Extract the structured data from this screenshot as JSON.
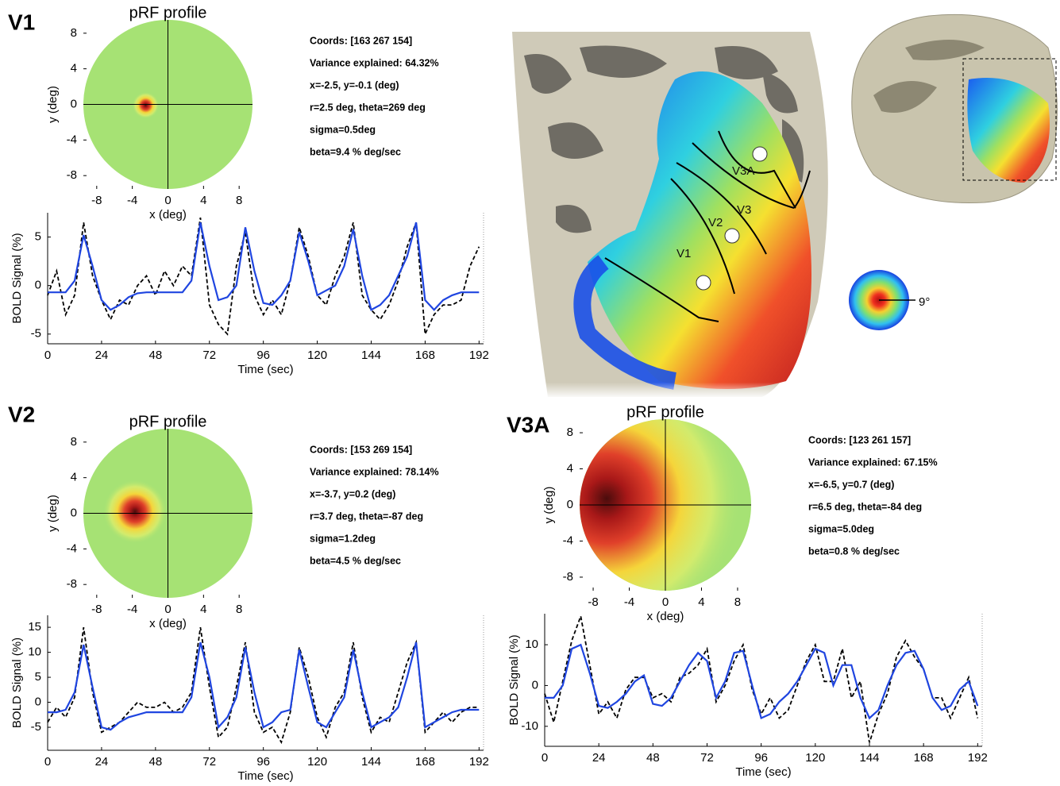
{
  "figure": {
    "panel_labels": [
      "V1",
      "V2",
      "V3A"
    ],
    "brain_labels": [
      "V3A",
      "V3",
      "V2",
      "V1"
    ],
    "scale_label": "9°"
  },
  "chart_data": [
    {
      "type": "prf",
      "title": "pRF profile",
      "xlabel": "x (deg)",
      "ylabel": "y (deg)",
      "xlim": [
        -9.5,
        9.5
      ],
      "ylim": [
        -9.5,
        9.5
      ],
      "xticks": [
        -8,
        -4,
        0,
        4,
        8
      ],
      "yticks": [
        -8,
        -4,
        0,
        4,
        8
      ],
      "color": "#a6e274",
      "center_x": -2.5,
      "center_y": -0.1,
      "sigma": 0.5,
      "info": [
        "Coords: [163  267  154]",
        "Variance explained: 64.32%",
        "x=-2.5, y=-0.1 (deg)",
        "r=2.5 deg, theta=269 deg",
        "sigma=0.5deg",
        "beta=9.4 % deg/sec"
      ]
    },
    {
      "type": "line",
      "xlabel": "Time (sec)",
      "ylabel": "BOLD Signal (%)",
      "xlim": [
        0,
        194
      ],
      "ylim": [
        -6,
        7.5
      ],
      "xticks": [
        0,
        24,
        48,
        72,
        96,
        120,
        144,
        168,
        192
      ],
      "yticks": [
        -5,
        0,
        5
      ],
      "x": [
        0,
        4,
        8,
        12,
        16,
        20,
        24,
        28,
        32,
        36,
        40,
        44,
        48,
        52,
        56,
        60,
        64,
        68,
        72,
        76,
        80,
        84,
        88,
        92,
        96,
        100,
        104,
        108,
        112,
        116,
        120,
        124,
        128,
        132,
        136,
        140,
        144,
        148,
        152,
        156,
        160,
        164,
        168,
        172,
        176,
        180,
        184,
        188,
        192
      ],
      "series": [
        {
          "color": "#000000",
          "dashed": true,
          "values": [
            -1,
            1.5,
            -3,
            -1,
            6.5,
            1,
            -1.5,
            -3.5,
            -1.5,
            -2,
            0,
            1,
            -1,
            1.5,
            0,
            2,
            1,
            7,
            -2,
            -4,
            -5,
            2,
            5.5,
            -1,
            -3,
            -1.5,
            -3,
            0.5,
            6,
            3,
            -1,
            -2,
            1,
            3,
            6.5,
            -1,
            -2.5,
            -3.5,
            -2,
            0.5,
            4,
            6.5,
            -5,
            -3,
            -2,
            -2,
            -1.5,
            2,
            4
          ]
        },
        {
          "color": "#1f45e0",
          "dashed": false,
          "values": [
            -0.7,
            -0.7,
            -0.7,
            0.5,
            5.2,
            2,
            -1.5,
            -2.5,
            -2,
            -1.2,
            -0.8,
            -0.7,
            -0.7,
            -0.7,
            -0.7,
            -0.7,
            0.5,
            6.5,
            2,
            -1.5,
            -1.2,
            0,
            6,
            1.5,
            -1.8,
            -2,
            -1,
            0.5,
            5.5,
            2.5,
            -1,
            -0.5,
            0,
            2,
            5.8,
            1,
            -2.5,
            -2,
            -1,
            1,
            3,
            6.5,
            -1.5,
            -2.5,
            -1.5,
            -1,
            -0.7,
            -0.7,
            -0.7
          ]
        }
      ]
    },
    {
      "type": "prf",
      "title": "pRF profile",
      "xlabel": "x (deg)",
      "ylabel": "y (deg)",
      "xlim": [
        -9.5,
        9.5
      ],
      "ylim": [
        -9.5,
        9.5
      ],
      "xticks": [
        -8,
        -4,
        0,
        4,
        8
      ],
      "yticks": [
        -8,
        -4,
        0,
        4,
        8
      ],
      "color": "#a6e274",
      "center_x": -3.7,
      "center_y": 0.2,
      "sigma": 1.2,
      "info": [
        "Coords: [153  269  154]",
        "Variance explained: 78.14%",
        "x=-3.7, y=0.2 (deg)",
        "r=3.7 deg, theta=-87 deg",
        "sigma=1.2deg",
        "beta=4.5 % deg/sec"
      ]
    },
    {
      "type": "line",
      "xlabel": "Time (sec)",
      "ylabel": "BOLD Signal (%)",
      "xlim": [
        0,
        194
      ],
      "ylim": [
        -9.6,
        17.4
      ],
      "xticks": [
        0,
        24,
        48,
        72,
        96,
        120,
        144,
        168,
        192
      ],
      "yticks": [
        -5,
        0,
        5,
        10,
        15
      ],
      "x": [
        0,
        4,
        8,
        12,
        16,
        20,
        24,
        28,
        32,
        36,
        40,
        44,
        48,
        52,
        56,
        60,
        64,
        68,
        72,
        76,
        80,
        84,
        88,
        92,
        96,
        100,
        104,
        108,
        112,
        116,
        120,
        124,
        128,
        132,
        136,
        140,
        144,
        148,
        152,
        156,
        160,
        164,
        168,
        172,
        176,
        180,
        184,
        188,
        192
      ],
      "series": [
        {
          "color": "#000000",
          "dashed": true,
          "values": [
            -4,
            -1,
            -3,
            1,
            15,
            2,
            -6,
            -5,
            -4,
            -2,
            0,
            -1,
            -1,
            0,
            -2,
            -1,
            2,
            15,
            3,
            -7,
            -5,
            3,
            12,
            -2,
            -6,
            -5,
            -8,
            -2,
            11,
            5,
            -3,
            -7,
            -1,
            2,
            12,
            1,
            -6,
            -3,
            -4,
            2,
            8,
            12,
            -6,
            -4,
            -2,
            -4,
            -2,
            -1,
            -1
          ]
        },
        {
          "color": "#1f45e0",
          "dashed": false,
          "values": [
            -2,
            -2,
            -1.5,
            2,
            11.5,
            3,
            -5,
            -5.5,
            -4,
            -3,
            -2.5,
            -2,
            -2,
            -2,
            -2,
            -2,
            1,
            12,
            5,
            -5,
            -3,
            1,
            11,
            2,
            -5,
            -4,
            -2,
            -1.5,
            10.5,
            3,
            -4,
            -5,
            -2,
            1,
            10.5,
            2,
            -5,
            -4,
            -3,
            -1,
            5,
            12,
            -5,
            -4,
            -3,
            -2,
            -1.5,
            -1.5,
            -1.5
          ]
        }
      ]
    },
    {
      "type": "prf",
      "title": "pRF profile",
      "xlabel": "x (deg)",
      "ylabel": "y (deg)",
      "xlim": [
        -9.5,
        9.5
      ],
      "ylim": [
        -9.5,
        9.5
      ],
      "xticks": [
        -8,
        -4,
        0,
        4,
        8
      ],
      "yticks": [
        -8,
        -4,
        0,
        4,
        8
      ],
      "color": "#a6e274",
      "center_x": -6.5,
      "center_y": 0.7,
      "sigma": 5.0,
      "info": [
        "Coords: [123  261  157]",
        "Variance explained: 67.15%",
        "x=-6.5, y=0.7 (deg)",
        "r=6.5 deg, theta=-84 deg",
        "sigma=5.0deg",
        "beta=0.8 % deg/sec"
      ]
    },
    {
      "type": "line",
      "xlabel": "Time (sec)",
      "ylabel": "BOLD Signal (%)",
      "xlim": [
        0,
        194
      ],
      "ylim": [
        -14.9,
        17.6
      ],
      "xticks": [
        0,
        24,
        48,
        72,
        96,
        120,
        144,
        168,
        192
      ],
      "yticks": [
        -10,
        0,
        10
      ],
      "x": [
        0,
        4,
        8,
        12,
        16,
        20,
        24,
        28,
        32,
        36,
        40,
        44,
        48,
        52,
        56,
        60,
        64,
        68,
        72,
        76,
        80,
        84,
        88,
        92,
        96,
        100,
        104,
        108,
        112,
        116,
        120,
        124,
        128,
        132,
        136,
        140,
        144,
        148,
        152,
        156,
        160,
        164,
        168,
        172,
        176,
        180,
        184,
        188,
        192
      ],
      "series": [
        {
          "color": "#000000",
          "dashed": true,
          "values": [
            -2,
            -9,
            1,
            11,
            17,
            5,
            -7,
            -4,
            -8,
            -1,
            2,
            2,
            -3,
            -2,
            -4,
            2,
            3,
            5,
            9,
            -4,
            0,
            6,
            10,
            -1,
            -7,
            -3,
            -8,
            -6,
            0,
            6,
            10,
            1,
            1,
            9,
            -3,
            1,
            -14,
            -7,
            -2,
            7,
            11,
            7,
            4,
            -3,
            -3,
            -8,
            -3,
            2,
            -8
          ]
        },
        {
          "color": "#1f45e0",
          "dashed": false,
          "values": [
            -3,
            -3,
            0,
            9,
            10,
            3,
            -5,
            -5.5,
            -4,
            -2,
            1,
            2.5,
            -4.5,
            -5,
            -3,
            1,
            5,
            8,
            6,
            -3,
            1,
            8,
            8.5,
            0,
            -8,
            -7,
            -4,
            -2,
            1,
            5,
            9,
            8,
            0,
            5,
            5,
            -3,
            -8,
            -6,
            0,
            5,
            8,
            8.5,
            4,
            -3,
            -6,
            -5,
            -1,
            1,
            -5
          ]
        }
      ]
    }
  ]
}
